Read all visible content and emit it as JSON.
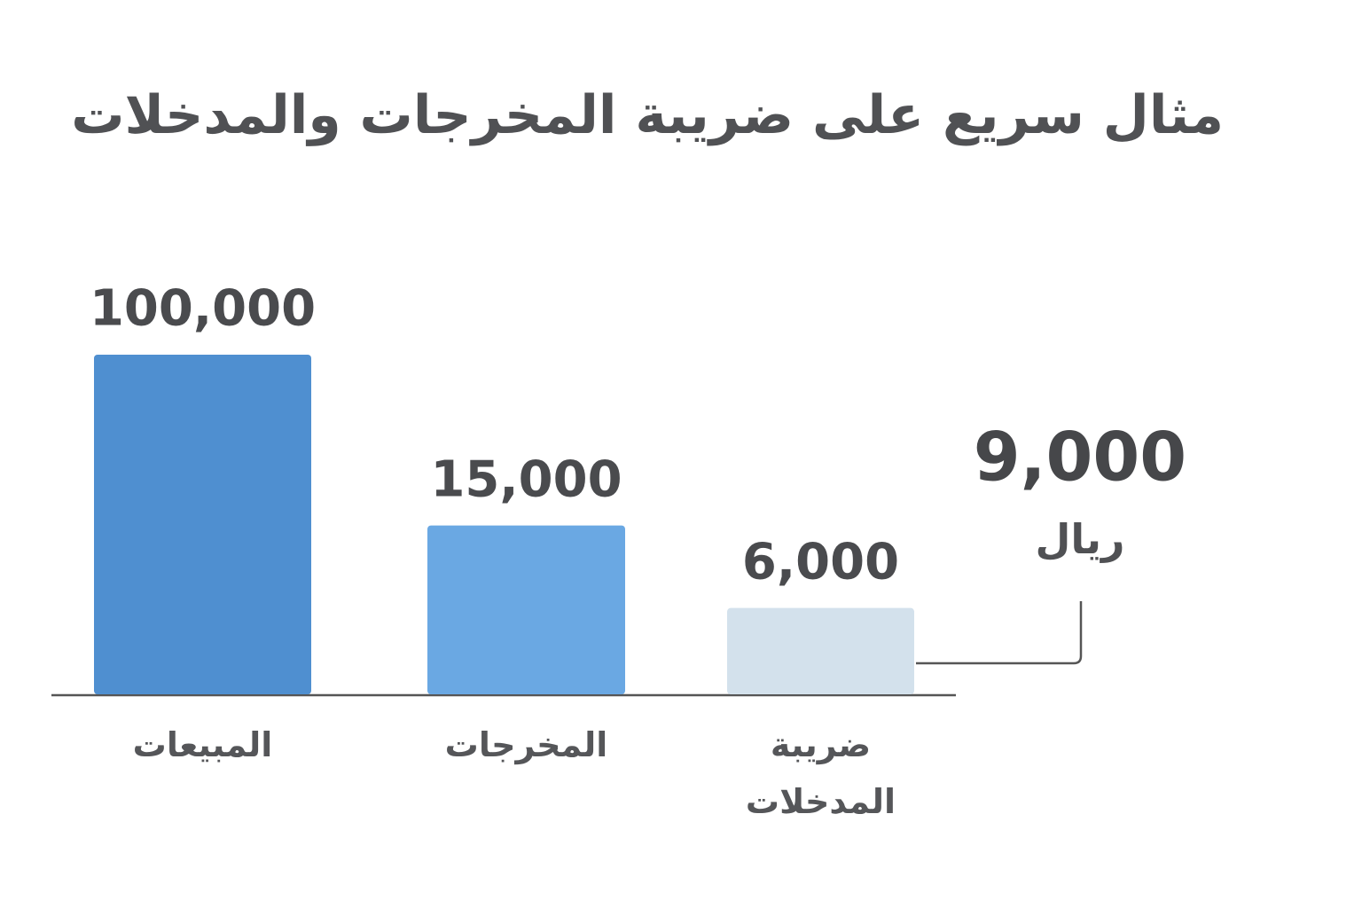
{
  "chart_data": {
    "type": "bar",
    "title": "مثال سريع على ضريبة المخرجات والمدخلات",
    "categories": [
      "المبيعات",
      "المخرجات",
      "ضريبة المدخلات"
    ],
    "values": [
      100000,
      15000,
      6000
    ],
    "value_labels": [
      "100,000",
      "15,000",
      "6,000"
    ],
    "colors": [
      "#4f8fd0",
      "#6aa8e3",
      "#d3e1ec"
    ],
    "yscale": "log",
    "ylim": [
      2300,
      100000
    ],
    "annotation": {
      "text": "9,000",
      "unit": "ريال"
    }
  }
}
